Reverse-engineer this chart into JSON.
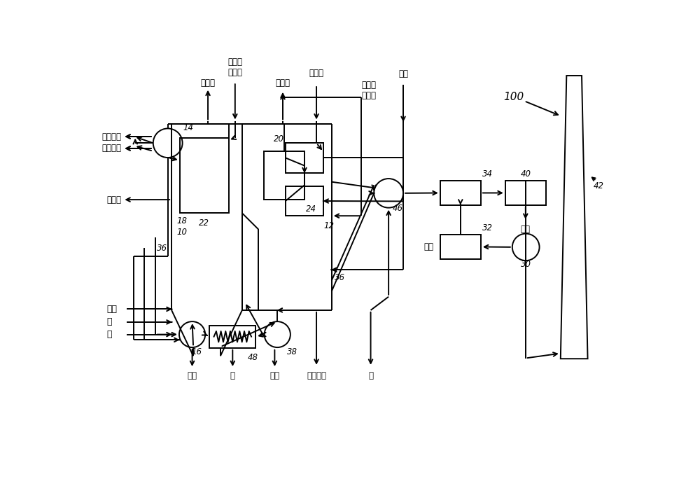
{
  "bg_color": "#ffffff",
  "line_color": "#000000",
  "fig_width": 10.0,
  "fig_height": 7.14,
  "labels": {
    "superheater_spray": "过热器\n喷雾水",
    "cold_reheat": "冷再热",
    "feedwater": "给水",
    "reheater_spray": "再热器\n喷雾水",
    "main_steam": "主蒸汽",
    "hot_reheat": "热再热",
    "aux_steam": "辅助蒸汽",
    "soot_blow": "吹灰蒸汽",
    "blowdown": "排出物",
    "steam": "蒸汽",
    "oil": "油",
    "gas": "气",
    "ash_water1": "灰水",
    "ash": "灰",
    "ash_water2": "灰水",
    "economizer_ash": "节热器灰",
    "coal": "煤",
    "fly_ash": "飞灰",
    "air": "空气"
  }
}
